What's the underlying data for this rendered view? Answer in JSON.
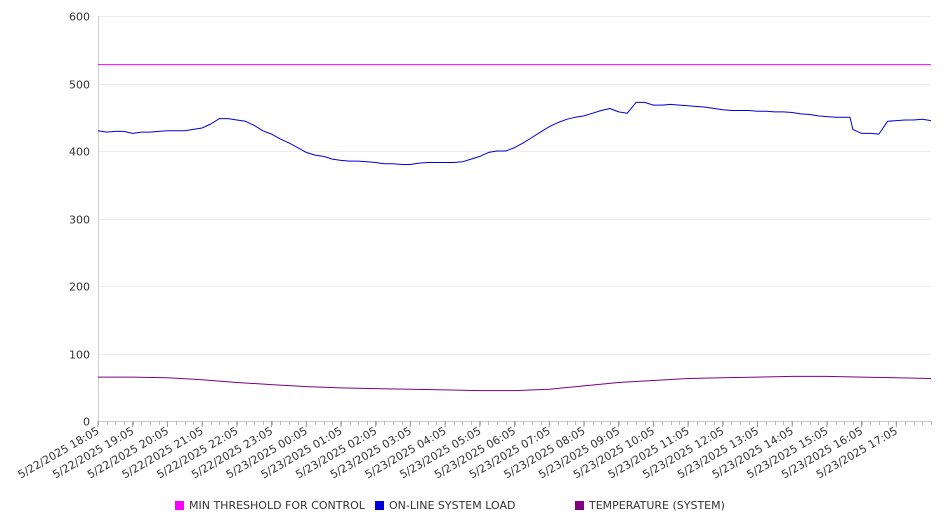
{
  "chart_data": {
    "type": "line",
    "title": "",
    "xlabel": "",
    "ylabel": "",
    "ylim": [
      0,
      600
    ],
    "yticks": [
      0,
      100,
      200,
      300,
      400,
      500,
      600
    ],
    "grid": "horizontal",
    "legend_position": "bottom",
    "x_tick_labels": [
      "5/22/2025 18:05",
      "5/22/2025 19:05",
      "5/22/2025 20:05",
      "5/22/2025 21:05",
      "5/22/2025 22:05",
      "5/22/2025 23:05",
      "5/23/2025 00:05",
      "5/23/2025 01:05",
      "5/23/2025 02:05",
      "5/23/2025 03:05",
      "5/23/2025 04:05",
      "5/23/2025 05:05",
      "5/23/2025 06:05",
      "5/23/2025 07:05",
      "5/23/2025 08:05",
      "5/23/2025 09:05",
      "5/23/2025 10:05",
      "5/23/2025 11:05",
      "5/23/2025 12:05",
      "5/23/2025 13:05",
      "5/23/2025 14:05",
      "5/23/2025 15:05",
      "5/23/2025 16:05",
      "5/23/2025 17:05"
    ],
    "x_range": [
      "5/22/2025 18:05",
      "5/23/2025 18:05"
    ],
    "series": [
      {
        "name": "MIN THRESHOLD FOR CONTROL",
        "color": "#ff00ff",
        "points": [
          [
            "5/22/2025 18:05",
            528
          ],
          [
            "5/23/2025 18:05",
            528
          ]
        ]
      },
      {
        "name": "ON-LINE SYSTEM LOAD",
        "color": "#0000dd",
        "points": [
          [
            "5/22/2025 18:05",
            430
          ],
          [
            "5/22/2025 18:20",
            428
          ],
          [
            "5/22/2025 18:35",
            429
          ],
          [
            "5/22/2025 18:50",
            429
          ],
          [
            "5/22/2025 19:05",
            426
          ],
          [
            "5/22/2025 19:20",
            428
          ],
          [
            "5/22/2025 19:35",
            428
          ],
          [
            "5/22/2025 19:50",
            429
          ],
          [
            "5/22/2025 20:05",
            430
          ],
          [
            "5/22/2025 20:20",
            430
          ],
          [
            "5/22/2025 20:35",
            430
          ],
          [
            "5/22/2025 20:50",
            432
          ],
          [
            "5/22/2025 21:05",
            434
          ],
          [
            "5/22/2025 21:20",
            440
          ],
          [
            "5/22/2025 21:35",
            448
          ],
          [
            "5/22/2025 21:50",
            448
          ],
          [
            "5/22/2025 22:05",
            446
          ],
          [
            "5/22/2025 22:20",
            444
          ],
          [
            "5/22/2025 22:35",
            438
          ],
          [
            "5/22/2025 22:50",
            430
          ],
          [
            "5/22/2025 23:05",
            425
          ],
          [
            "5/22/2025 23:20",
            418
          ],
          [
            "5/22/2025 23:35",
            412
          ],
          [
            "5/22/2025 23:50",
            405
          ],
          [
            "5/23/2025 00:05",
            398
          ],
          [
            "5/23/2025 00:20",
            394
          ],
          [
            "5/23/2025 00:35",
            392
          ],
          [
            "5/23/2025 00:50",
            388
          ],
          [
            "5/23/2025 01:05",
            386
          ],
          [
            "5/23/2025 01:20",
            385
          ],
          [
            "5/23/2025 01:35",
            385
          ],
          [
            "5/23/2025 01:50",
            384
          ],
          [
            "5/23/2025 02:05",
            383
          ],
          [
            "5/23/2025 02:20",
            381
          ],
          [
            "5/23/2025 02:35",
            381
          ],
          [
            "5/23/2025 02:50",
            380
          ],
          [
            "5/23/2025 03:05",
            380
          ],
          [
            "5/23/2025 03:20",
            382
          ],
          [
            "5/23/2025 03:35",
            383
          ],
          [
            "5/23/2025 03:50",
            383
          ],
          [
            "5/23/2025 04:05",
            383
          ],
          [
            "5/23/2025 04:20",
            383
          ],
          [
            "5/23/2025 04:35",
            384
          ],
          [
            "5/23/2025 04:50",
            388
          ],
          [
            "5/23/2025 05:05",
            392
          ],
          [
            "5/23/2025 05:20",
            398
          ],
          [
            "5/23/2025 05:35",
            400
          ],
          [
            "5/23/2025 05:50",
            400
          ],
          [
            "5/23/2025 06:05",
            405
          ],
          [
            "5/23/2025 06:20",
            412
          ],
          [
            "5/23/2025 06:35",
            420
          ],
          [
            "5/23/2025 06:50",
            428
          ],
          [
            "5/23/2025 07:05",
            436
          ],
          [
            "5/23/2025 07:20",
            442
          ],
          [
            "5/23/2025 07:35",
            447
          ],
          [
            "5/23/2025 07:50",
            450
          ],
          [
            "5/23/2025 08:05",
            452
          ],
          [
            "5/23/2025 08:20",
            456
          ],
          [
            "5/23/2025 08:35",
            460
          ],
          [
            "5/23/2025 08:50",
            463
          ],
          [
            "5/23/2025 09:05",
            458
          ],
          [
            "5/23/2025 09:20",
            456
          ],
          [
            "5/23/2025 09:35",
            472
          ],
          [
            "5/23/2025 09:50",
            472
          ],
          [
            "5/23/2025 10:05",
            468
          ],
          [
            "5/23/2025 10:20",
            468
          ],
          [
            "5/23/2025 10:35",
            469
          ],
          [
            "5/23/2025 10:50",
            468
          ],
          [
            "5/23/2025 11:05",
            467
          ],
          [
            "5/23/2025 11:20",
            466
          ],
          [
            "5/23/2025 11:35",
            465
          ],
          [
            "5/23/2025 11:50",
            463
          ],
          [
            "5/23/2025 12:05",
            461
          ],
          [
            "5/23/2025 12:20",
            460
          ],
          [
            "5/23/2025 12:35",
            460
          ],
          [
            "5/23/2025 12:50",
            460
          ],
          [
            "5/23/2025 13:05",
            459
          ],
          [
            "5/23/2025 13:20",
            459
          ],
          [
            "5/23/2025 13:35",
            458
          ],
          [
            "5/23/2025 13:50",
            458
          ],
          [
            "5/23/2025 14:05",
            457
          ],
          [
            "5/23/2025 14:20",
            455
          ],
          [
            "5/23/2025 14:35",
            454
          ],
          [
            "5/23/2025 14:50",
            452
          ],
          [
            "5/23/2025 15:05",
            451
          ],
          [
            "5/23/2025 15:20",
            450
          ],
          [
            "5/23/2025 15:35",
            450
          ],
          [
            "5/23/2025 15:45",
            450
          ],
          [
            "5/23/2025 15:50",
            432
          ],
          [
            "5/23/2025 16:05",
            426
          ],
          [
            "5/23/2025 16:20",
            426
          ],
          [
            "5/23/2025 16:35",
            425
          ],
          [
            "5/23/2025 16:50",
            444
          ],
          [
            "5/23/2025 17:05",
            445
          ],
          [
            "5/23/2025 17:20",
            446
          ],
          [
            "5/23/2025 17:35",
            446
          ],
          [
            "5/23/2025 17:50",
            447
          ],
          [
            "5/23/2025 18:05",
            445
          ]
        ]
      },
      {
        "name": "TEMPERATURE (SYSTEM)",
        "color": "#800080",
        "points": [
          [
            "5/22/2025 18:05",
            65
          ],
          [
            "5/22/2025 19:05",
            65
          ],
          [
            "5/22/2025 20:05",
            64
          ],
          [
            "5/22/2025 21:05",
            61
          ],
          [
            "5/22/2025 22:05",
            57
          ],
          [
            "5/22/2025 23:05",
            54
          ],
          [
            "5/23/2025 00:05",
            51
          ],
          [
            "5/23/2025 01:05",
            49
          ],
          [
            "5/23/2025 02:05",
            48
          ],
          [
            "5/23/2025 03:05",
            47
          ],
          [
            "5/23/2025 04:05",
            46
          ],
          [
            "5/23/2025 05:05",
            45
          ],
          [
            "5/23/2025 06:05",
            45
          ],
          [
            "5/23/2025 07:05",
            47
          ],
          [
            "5/23/2025 08:05",
            52
          ],
          [
            "5/23/2025 09:05",
            57
          ],
          [
            "5/23/2025 10:05",
            60
          ],
          [
            "5/23/2025 11:05",
            63
          ],
          [
            "5/23/2025 12:05",
            64
          ],
          [
            "5/23/2025 13:05",
            65
          ],
          [
            "5/23/2025 14:05",
            66
          ],
          [
            "5/23/2025 15:05",
            66
          ],
          [
            "5/23/2025 16:05",
            65
          ],
          [
            "5/23/2025 17:05",
            64
          ],
          [
            "5/23/2025 18:05",
            63
          ]
        ]
      }
    ]
  }
}
